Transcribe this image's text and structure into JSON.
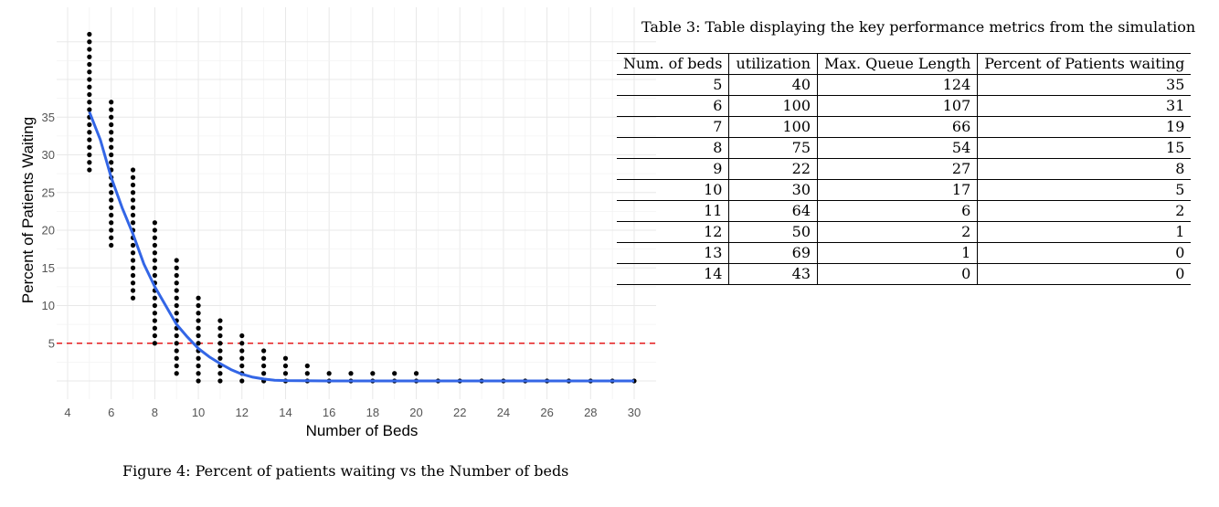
{
  "figure": {
    "caption": "Figure 4: Percent of patients waiting vs the Number of beds"
  },
  "chart_data": {
    "type": "scatter",
    "xlabel": "Number of Beds",
    "ylabel": "Percent of Patients Waiting",
    "xlim": [
      4,
      30
    ],
    "ylim": [
      0,
      37
    ],
    "x_ticks": [
      4,
      6,
      8,
      10,
      12,
      14,
      16,
      18,
      20,
      22,
      24,
      26,
      28,
      30
    ],
    "y_ticks": [
      5,
      10,
      15,
      20,
      25,
      30,
      35
    ],
    "grid": true,
    "point_columns": [
      {
        "x": 5,
        "y_min": 28,
        "y_max": 46
      },
      {
        "x": 6,
        "y_min": 18,
        "y_max": 37
      },
      {
        "x": 7,
        "y_min": 11,
        "y_max": 28
      },
      {
        "x": 8,
        "y_min": 5,
        "y_max": 21
      },
      {
        "x": 9,
        "y_min": 1,
        "y_max": 16
      },
      {
        "x": 10,
        "y_min": 0,
        "y_max": 11
      },
      {
        "x": 11,
        "y_min": 0,
        "y_max": 8
      },
      {
        "x": 12,
        "y_min": 0,
        "y_max": 6
      },
      {
        "x": 13,
        "y_min": 0,
        "y_max": 4
      },
      {
        "x": 14,
        "y_min": 0,
        "y_max": 3
      },
      {
        "x": 15,
        "y_min": 0,
        "y_max": 2
      },
      {
        "x": 16,
        "y_min": 0,
        "y_max": 1
      },
      {
        "x": 17,
        "y_min": 0,
        "y_max": 1
      },
      {
        "x": 18,
        "y_min": 0,
        "y_max": 1
      },
      {
        "x": 19,
        "y_min": 0,
        "y_max": 1
      },
      {
        "x": 20,
        "y_min": 0,
        "y_max": 1
      },
      {
        "x": 21,
        "y_min": 0,
        "y_max": 0
      },
      {
        "x": 22,
        "y_min": 0,
        "y_max": 0
      },
      {
        "x": 23,
        "y_min": 0,
        "y_max": 0
      },
      {
        "x": 24,
        "y_min": 0,
        "y_max": 0
      },
      {
        "x": 25,
        "y_min": 0,
        "y_max": 0
      },
      {
        "x": 26,
        "y_min": 0,
        "y_max": 0
      },
      {
        "x": 27,
        "y_min": 0,
        "y_max": 0
      },
      {
        "x": 28,
        "y_min": 0,
        "y_max": 0
      },
      {
        "x": 29,
        "y_min": 0,
        "y_max": 0
      },
      {
        "x": 30,
        "y_min": 0,
        "y_max": 0
      }
    ],
    "fit_line": {
      "color": "#3366e6",
      "points": [
        [
          5,
          35.7
        ],
        [
          5.5,
          32
        ],
        [
          6,
          27
        ],
        [
          6.5,
          23
        ],
        [
          7,
          19.5
        ],
        [
          7.5,
          15.5
        ],
        [
          8,
          12.5
        ],
        [
          8.5,
          10
        ],
        [
          9,
          7.5
        ],
        [
          9.5,
          5.8
        ],
        [
          10,
          4.3
        ],
        [
          10.5,
          3.2
        ],
        [
          11,
          2.3
        ],
        [
          11.5,
          1.5
        ],
        [
          12,
          0.9
        ],
        [
          12.5,
          0.5
        ],
        [
          13,
          0.25
        ],
        [
          13.5,
          0.1
        ],
        [
          14,
          0.05
        ],
        [
          16,
          0
        ],
        [
          20,
          0
        ],
        [
          25,
          0
        ],
        [
          30,
          0
        ]
      ]
    },
    "reference_line": {
      "y": 5,
      "color": "#e41a1c",
      "style": "dashed"
    },
    "point_color": "#000000"
  },
  "table": {
    "caption": "Table 3: Table displaying the key performance metrics from the simulation",
    "headers": [
      "Num. of beds",
      "utilization",
      "Max. Queue Length",
      "Percent of Patients waiting"
    ],
    "rows": [
      [
        "5",
        "40",
        "124",
        "35"
      ],
      [
        "6",
        "100",
        "107",
        "31"
      ],
      [
        "7",
        "100",
        "66",
        "19"
      ],
      [
        "8",
        "75",
        "54",
        "15"
      ],
      [
        "9",
        "22",
        "27",
        "8"
      ],
      [
        "10",
        "30",
        "17",
        "5"
      ],
      [
        "11",
        "64",
        "6",
        "2"
      ],
      [
        "12",
        "50",
        "2",
        "1"
      ],
      [
        "13",
        "69",
        "1",
        "0"
      ],
      [
        "14",
        "43",
        "0",
        "0"
      ]
    ]
  }
}
